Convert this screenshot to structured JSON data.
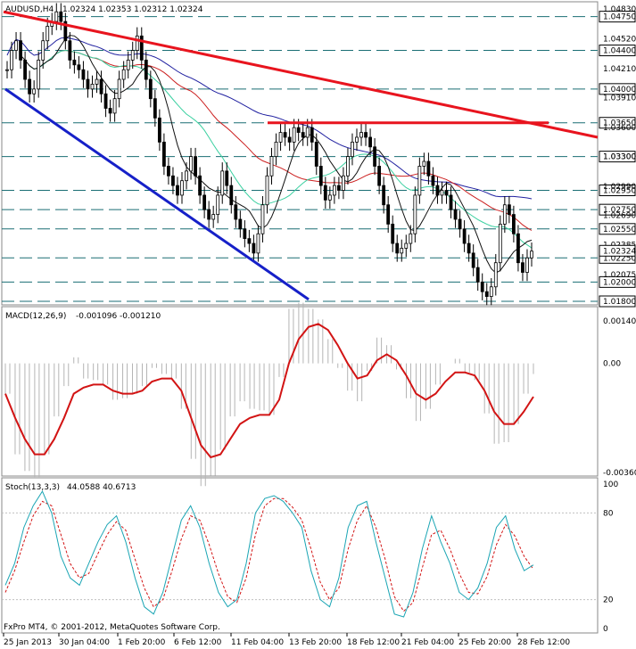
{
  "header": {
    "symbol": "AUDUSD,H4",
    "ohlc": "1.02324 1.02353 1.02312 1.02324"
  },
  "footer": {
    "copyright": "FxPro MT4, © 2001-2012, MetaQuotes Software Corp."
  },
  "colors": {
    "price_line": "#000000",
    "level": "#1a6e74",
    "trend_red": "#e8141e",
    "trend_blue": "#1620c8",
    "macd_hist": "#b4b4b4",
    "macd_signal": "#d21414",
    "stoch_main": "#1aa5b4",
    "stoch_signal": "#d21414",
    "ma_dark": "#111111",
    "ma_green": "#3ad0a0",
    "ma_red": "#cc2020",
    "ma_blue": "#2020a0"
  },
  "chart_data": [
    {
      "type": "candlestick",
      "title": "AUDUSD,H4",
      "ylim": [
        1.018,
        1.0483
      ],
      "y_ticks": [
        "1.04830",
        "1.04520",
        "1.04210",
        "1.03910",
        "1.03600",
        "1.03300",
        "1.02990",
        "1.02690",
        "1.02385",
        "1.02075"
      ],
      "levels": [
        {
          "value": 1.0475,
          "label": "1.04750"
        },
        {
          "value": 1.044,
          "label": "1.04400"
        },
        {
          "value": 1.04,
          "label": "1.04000"
        },
        {
          "value": 1.0365,
          "label": "1.03650"
        },
        {
          "value": 1.033,
          "label": "1.03300"
        },
        {
          "value": 1.0295,
          "label": "1.02950"
        },
        {
          "value": 1.0275,
          "label": "1.02750"
        },
        {
          "value": 1.0255,
          "label": "1.02550"
        },
        {
          "value": 1.0225,
          "label": "1.02250"
        },
        {
          "value": 1.02,
          "label": "1.02000"
        },
        {
          "value": 1.018,
          "label": "1.01800"
        }
      ],
      "current_price": {
        "value": 1.02324,
        "label": "1.02324"
      },
      "close": [
        1.042,
        1.044,
        1.045,
        1.043,
        1.041,
        1.0395,
        1.04,
        1.043,
        1.045,
        1.0465,
        1.047,
        1.048,
        1.047,
        1.045,
        1.043,
        1.0425,
        1.042,
        1.041,
        1.04,
        1.0405,
        1.041,
        1.0395,
        1.038,
        1.0375,
        1.039,
        1.041,
        1.042,
        1.043,
        1.044,
        1.0455,
        1.043,
        1.041,
        1.039,
        1.037,
        1.0345,
        1.032,
        1.031,
        1.03,
        1.029,
        1.0305,
        1.0315,
        1.033,
        1.031,
        1.029,
        1.0275,
        1.0265,
        1.027,
        1.029,
        1.0315,
        1.03,
        1.028,
        1.0265,
        1.0255,
        1.0245,
        1.024,
        1.023,
        1.025,
        1.028,
        1.031,
        1.033,
        1.0345,
        1.0355,
        1.035,
        1.0345,
        1.036,
        1.0355,
        1.035,
        1.036,
        1.0345,
        1.032,
        1.03,
        1.0285,
        1.029,
        1.03,
        1.0295,
        1.031,
        1.033,
        1.0345,
        1.035,
        1.0355,
        1.035,
        1.034,
        1.032,
        1.03,
        1.028,
        1.026,
        1.024,
        1.023,
        1.0235,
        1.024,
        1.025,
        1.029,
        1.032,
        1.0325,
        1.031,
        1.03,
        1.029,
        1.0295,
        1.029,
        1.0275,
        1.0265,
        1.0255,
        1.024,
        1.023,
        1.0215,
        1.02,
        1.019,
        1.0185,
        1.0195,
        1.022,
        1.026,
        1.028,
        1.027,
        1.025,
        1.022,
        1.021,
        1.0225,
        1.0232
      ],
      "moving_averages": [
        "MA dark",
        "MA green",
        "MA red",
        "MA blue"
      ],
      "trendlines": [
        "red descending resistance",
        "red horizontal 1.0365",
        "blue descending support"
      ]
    },
    {
      "type": "histogram+line",
      "title": "MACD(12,26,9)",
      "values_label": "-0.001096 -0.001210",
      "ylim": [
        -0.0036,
        0.0014
      ],
      "y_ticks": [
        "0.00140",
        "0.00",
        "-0.00360"
      ],
      "signal": [
        -0.001,
        -0.0018,
        -0.0025,
        -0.003,
        -0.003,
        -0.0025,
        -0.0018,
        -0.001,
        -0.0008,
        -0.0007,
        -0.0007,
        -0.0009,
        -0.001,
        -0.001,
        -0.0009,
        -0.0006,
        -0.0005,
        -0.0005,
        -0.0009,
        -0.0018,
        -0.0027,
        -0.0031,
        -0.003,
        -0.0025,
        -0.002,
        -0.0018,
        -0.0017,
        -0.0017,
        -0.0012,
        0.0,
        0.0008,
        0.0012,
        0.0013,
        0.0011,
        0.0006,
        0.0,
        -0.0005,
        -0.0004,
        0.0001,
        0.0003,
        0.0001,
        -0.0004,
        -0.001,
        -0.0012,
        -0.001,
        -0.0006,
        -0.0003,
        -0.0003,
        -0.0004,
        -0.0009,
        -0.0016,
        -0.002,
        -0.002,
        -0.0016,
        -0.0011
      ]
    },
    {
      "type": "line",
      "title": "Stoch(13,3,3)",
      "values_label": "44.0588 40.6713",
      "ylim": [
        0,
        100
      ],
      "y_ticks": [
        "100",
        "80",
        "20",
        "0"
      ],
      "main": [
        30,
        45,
        70,
        85,
        95,
        80,
        50,
        35,
        30,
        45,
        60,
        72,
        78,
        60,
        35,
        15,
        10,
        25,
        50,
        75,
        85,
        70,
        45,
        25,
        15,
        20,
        45,
        80,
        90,
        92,
        88,
        80,
        70,
        40,
        20,
        15,
        35,
        70,
        85,
        88,
        60,
        35,
        10,
        8,
        25,
        55,
        78,
        60,
        45,
        25,
        20,
        28,
        45,
        70,
        78,
        55,
        40,
        44
      ],
      "signal": [
        25,
        40,
        60,
        78,
        88,
        85,
        65,
        45,
        35,
        38,
        52,
        65,
        74,
        68,
        48,
        28,
        15,
        20,
        40,
        62,
        78,
        75,
        58,
        38,
        22,
        18,
        35,
        65,
        85,
        90,
        90,
        84,
        75,
        55,
        32,
        20,
        28,
        55,
        75,
        85,
        70,
        48,
        22,
        12,
        18,
        42,
        65,
        68,
        55,
        38,
        25,
        24,
        36,
        58,
        72,
        64,
        50,
        41
      ]
    }
  ],
  "x_axis": [
    "25 Jan 2013",
    "30 Jan 04:00",
    "1 Feb 20:00",
    "6 Feb 12:00",
    "11 Feb 04:00",
    "13 Feb 20:00",
    "18 Feb 12:00",
    "21 Feb 04:00",
    "25 Feb 20:00",
    "28 Feb 12:00"
  ]
}
